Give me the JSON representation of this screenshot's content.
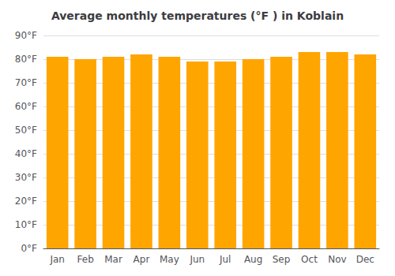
{
  "chart_data": {
    "type": "bar",
    "title": "Average monthly temperatures (°F ) in Koblain",
    "categories": [
      "Jan",
      "Feb",
      "Mar",
      "Apr",
      "May",
      "Jun",
      "Jul",
      "Aug",
      "Sep",
      "Oct",
      "Nov",
      "Dec"
    ],
    "values": [
      81,
      80,
      81,
      82,
      81,
      79,
      79,
      80,
      81,
      83,
      83,
      82
    ],
    "color": "#ffa500",
    "ylim": [
      0,
      90
    ],
    "yticks": [
      {
        "value": 0,
        "label": "0°F"
      },
      {
        "value": 10,
        "label": "10°F"
      },
      {
        "value": 20,
        "label": "20°F"
      },
      {
        "value": 30,
        "label": "30°F"
      },
      {
        "value": 40,
        "label": "40°F"
      },
      {
        "value": 50,
        "label": "50°F"
      },
      {
        "value": 60,
        "label": "60°F"
      },
      {
        "value": 70,
        "label": "70°F"
      },
      {
        "value": 80,
        "label": "80°F"
      },
      {
        "value": 90,
        "label": "90°F"
      }
    ],
    "grid": true
  }
}
